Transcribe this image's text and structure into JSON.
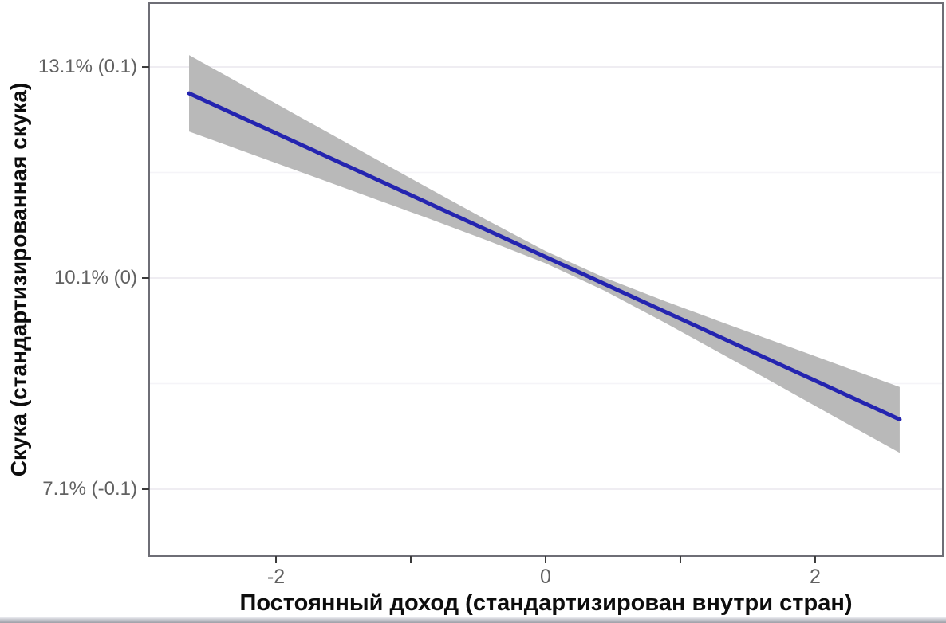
{
  "chart_data": {
    "type": "line",
    "title": "",
    "xlabel": "Постоянный доход (стандартизирован внутри стран)",
    "ylabel": "Скука (стандартизированная скука)",
    "xlim": [
      -2.941,
      2.947
    ],
    "ylim": [
      -0.1317,
      0.1302
    ],
    "grid": "horizontal-only",
    "legend": "none",
    "x_ticks": [
      {
        "value": -2,
        "label": "-2"
      },
      {
        "value": -1,
        "label": ""
      },
      {
        "value": 0,
        "label": "0"
      },
      {
        "value": 1,
        "label": ""
      },
      {
        "value": 2,
        "label": "2"
      }
    ],
    "y_ticks": [
      {
        "value": 0.1,
        "label": "13.1% (0.1)"
      },
      {
        "value": 0.0,
        "label": "10.1% (0)"
      },
      {
        "value": -0.1,
        "label": "7.1% (-0.1)"
      }
    ],
    "y_minor_gridlines": [
      0.05,
      -0.05
    ],
    "regression_line": {
      "intercept": 0.01,
      "slope": -0.0293,
      "x_start": -2.645,
      "x_end": 2.627
    },
    "ci_band": {
      "x": [
        -2.645,
        -2.2,
        -1.76,
        -1.32,
        -0.88,
        -0.44,
        0.0,
        0.44,
        0.88,
        1.32,
        1.76,
        2.2,
        2.627
      ],
      "upper": [
        0.1056,
        0.0898,
        0.0741,
        0.0585,
        0.043,
        0.0276,
        0.0128,
        0.0001,
        -0.0108,
        -0.0212,
        -0.0314,
        -0.0417,
        -0.0516
      ],
      "lower": [
        0.0694,
        0.0591,
        0.0489,
        0.0387,
        0.0285,
        0.018,
        0.007,
        -0.0061,
        -0.021,
        -0.0364,
        -0.052,
        -0.0677,
        -0.0828
      ]
    },
    "colors": {
      "line": "#2424b0",
      "band": "#b9b9b9",
      "panel_border": "#6e6e76",
      "tick_mark": "#3a3a3a",
      "tick_label": "#616161",
      "grid_major": "#efedf2",
      "grid_minor": "#f5f4f8",
      "background": "#ffffff",
      "axis_title": "#0d0d0d"
    }
  }
}
